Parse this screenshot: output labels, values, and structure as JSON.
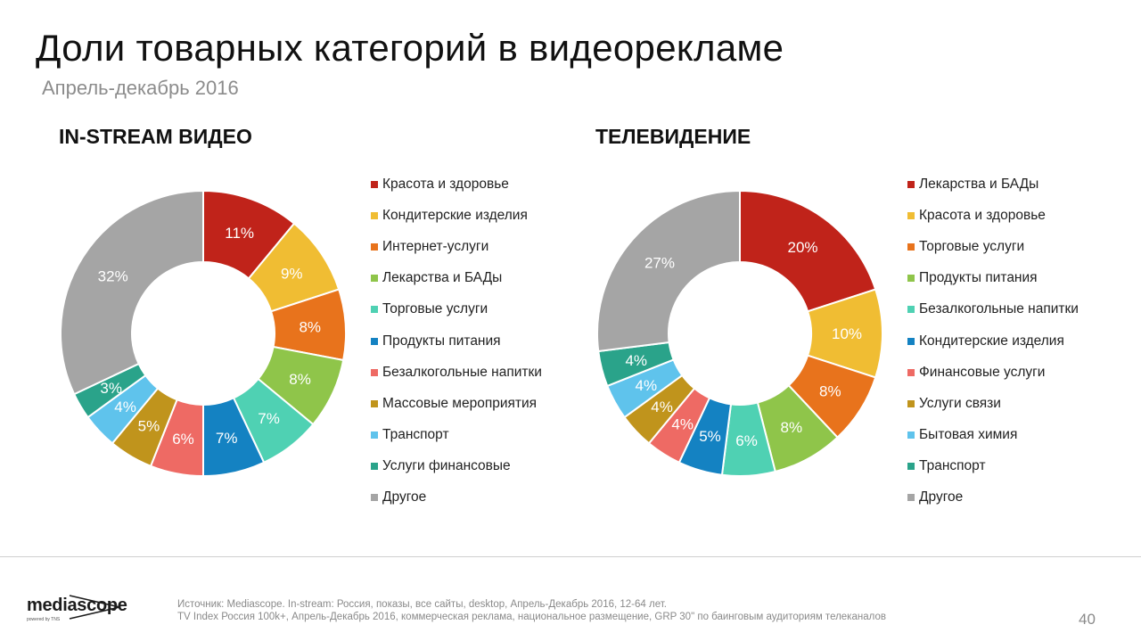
{
  "title": "Доли товарных категорий в видеорекламе",
  "subtitle": "Апрель-декабрь 2016",
  "chart_data": [
    {
      "type": "pie",
      "title": "IN-STREAM ВИДЕО",
      "categories": [
        "Красота и здоровье",
        "Кондитерские изделия",
        "Интернет-услуги",
        "Лекарства и БАДы",
        "Торговые услуги",
        "Продукты питания",
        "Безалкогольные напитки",
        "Массовые мероприятия",
        "Транспорт",
        "Услуги финансовые",
        "Другое"
      ],
      "values": [
        11,
        9,
        8,
        8,
        7,
        7,
        6,
        5,
        4,
        3,
        32
      ],
      "labels": [
        "11%",
        "9%",
        "8%",
        "8%",
        "7%",
        "7%",
        "6%",
        "5%",
        "4%",
        "3%",
        "32%"
      ],
      "colors": [
        "#c0231a",
        "#f0bd33",
        "#e8731c",
        "#8fc54a",
        "#4fd1b3",
        "#1482c2",
        "#ee6a64",
        "#c0941c",
        "#5fc3ec",
        "#2aa38a",
        "#a5a5a5"
      ],
      "legend": "right"
    },
    {
      "type": "pie",
      "title": "ТЕЛЕВИДЕНИЕ",
      "categories": [
        "Лекарства и БАДы",
        "Красота и здоровье",
        "Торговые услуги",
        "Продукты питания",
        "Безалкогольные напитки",
        "Кондитерские изделия",
        "Финансовые услуги",
        "Услуги связи",
        "Бытовая химия",
        "Транспорт",
        "Другое"
      ],
      "values": [
        20,
        10,
        8,
        8,
        6,
        5,
        4,
        4,
        4,
        4,
        27
      ],
      "labels": [
        "20%",
        "10%",
        "8%",
        "8%",
        "6%",
        "5%",
        "4%",
        "4%",
        "4%",
        "4%",
        "27%"
      ],
      "colors": [
        "#c0231a",
        "#f0bd33",
        "#e8731c",
        "#8fc54a",
        "#4fd1b3",
        "#1482c2",
        "#ee6a64",
        "#c0941c",
        "#5fc3ec",
        "#2aa38a",
        "#a5a5a5"
      ],
      "legend": "right"
    }
  ],
  "footer": {
    "logo_text": "mediascope",
    "logo_sub": "powered by TNS",
    "source_line1": "Источник: Mediascope. In-stream: Россия, показы, все сайты, desktop, Апрель-Декабрь 2016, 12-64 лет.",
    "source_line2": "TV Index Россия 100k+, Апрель-Декабрь 2016, коммерческая реклама, национальное размещение, GRP 30\" по баинговым аудиториям телеканалов",
    "page_number": "40"
  }
}
